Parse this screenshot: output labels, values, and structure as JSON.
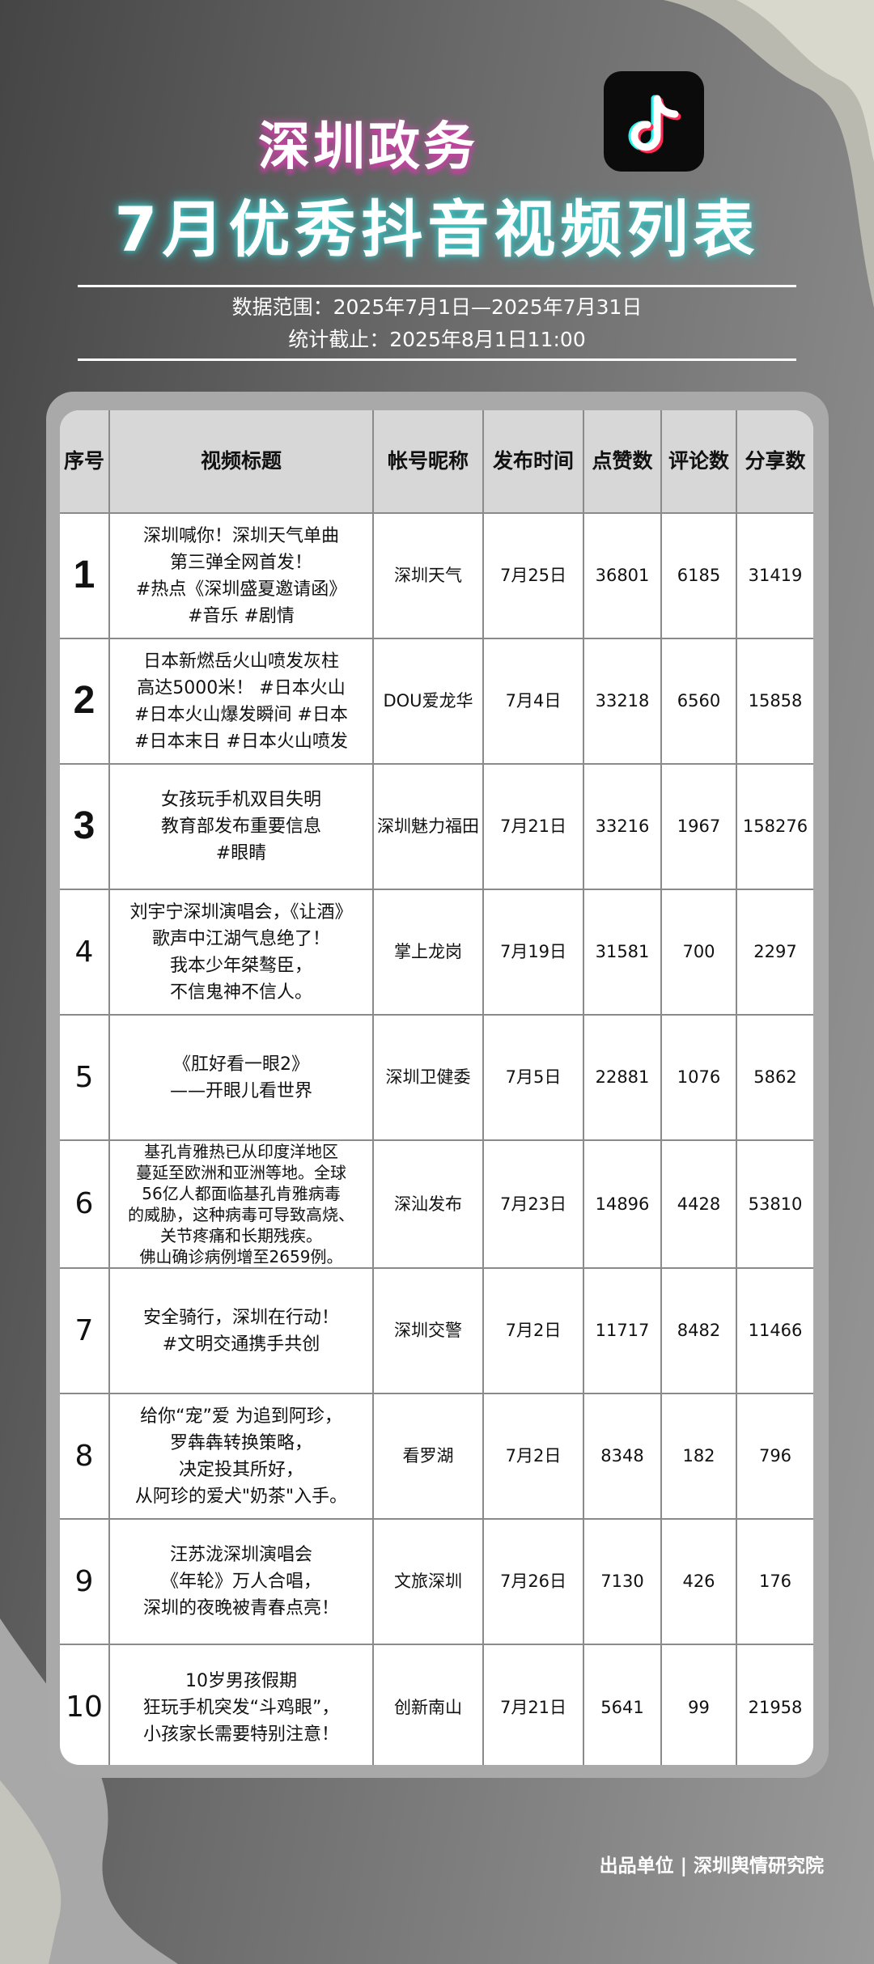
{
  "header": {
    "title_line1": "深圳政务",
    "title_line2": "7月优秀抖音视频列表",
    "logo": "douyin-logo",
    "data_range": "数据范围：2025年7月1日—2025年7月31日",
    "cutoff": "统计截止：2025年8月1日11:00"
  },
  "table": {
    "columns": [
      "序号",
      "视频标题",
      "帐号昵称",
      "发布时间",
      "点赞数",
      "评论数",
      "分享数"
    ],
    "rows": [
      {
        "rank": "1",
        "title": [
          "深圳喊你！深圳天气单曲",
          "第三弹全网首发！",
          "#热点《深圳盛夏邀请函》",
          "#音乐 #剧情"
        ],
        "account": "深圳天气",
        "date": "7月25日",
        "likes": "36801",
        "comments": "6185",
        "shares": "31419"
      },
      {
        "rank": "2",
        "title": [
          "日本新燃岳火山喷发灰柱",
          "高达5000米！ #日本火山",
          "#日本火山爆发瞬间 #日本",
          "#日本末日 #日本火山喷发"
        ],
        "account": "DOU爱龙华",
        "date": "7月4日",
        "likes": "33218",
        "comments": "6560",
        "shares": "15858"
      },
      {
        "rank": "3",
        "title": [
          "女孩玩手机双目失明",
          "教育部发布重要信息",
          "#眼睛"
        ],
        "account": "深圳魅力福田",
        "date": "7月21日",
        "likes": "33216",
        "comments": "1967",
        "shares": "158276"
      },
      {
        "rank": "4",
        "title": [
          "刘宇宁深圳演唱会，《让酒》",
          "歌声中江湖气息绝了！",
          "我本少年桀骜臣，",
          "不信鬼神不信人。"
        ],
        "account": "掌上龙岗",
        "date": "7月19日",
        "likes": "31581",
        "comments": "700",
        "shares": "2297"
      },
      {
        "rank": "5",
        "title": [
          "《肛好看一眼2》",
          "——开眼儿看世界"
        ],
        "account": "深圳卫健委",
        "date": "7月5日",
        "likes": "22881",
        "comments": "1076",
        "shares": "5862"
      },
      {
        "rank": "6",
        "title": [
          "基孔肯雅热已从印度洋地区",
          "蔓延至欧洲和亚洲等地。全球",
          "56亿人都面临基孔肯雅病毒",
          "的威胁，这种病毒可导致高烧、",
          "关节疼痛和长期残疾。",
          "佛山确诊病例增至2659例。"
        ],
        "account": "深汕发布",
        "date": "7月23日",
        "likes": "14896",
        "comments": "4428",
        "shares": "53810"
      },
      {
        "rank": "7",
        "title": [
          "安全骑行，深圳在行动！",
          "#文明交通携手共创"
        ],
        "account": "深圳交警",
        "date": "7月2日",
        "likes": "11717",
        "comments": "8482",
        "shares": "11466"
      },
      {
        "rank": "8",
        "title": [
          "给你“宠”爱 为追到阿珍，",
          "罗犇犇转换策略，",
          "决定投其所好，",
          "从阿珍的爱犬\"奶茶\"入手。"
        ],
        "account": "看罗湖",
        "date": "7月2日",
        "likes": "8348",
        "comments": "182",
        "shares": "796"
      },
      {
        "rank": "9",
        "title": [
          "汪苏泷深圳演唱会",
          "《年轮》万人合唱，",
          "深圳的夜晚被青春点亮！"
        ],
        "account": "文旅深圳",
        "date": "7月26日",
        "likes": "7130",
        "comments": "426",
        "shares": "176"
      },
      {
        "rank": "10",
        "title": [
          "10岁男孩假期",
          "狂玩手机突发“斗鸡眼”，",
          "小孩家长需要特别注意！"
        ],
        "account": "创新南山",
        "date": "7月21日",
        "likes": "5641",
        "comments": "99",
        "shares": "21958"
      }
    ]
  },
  "footer": "出品单位 | 深圳舆情研究院"
}
